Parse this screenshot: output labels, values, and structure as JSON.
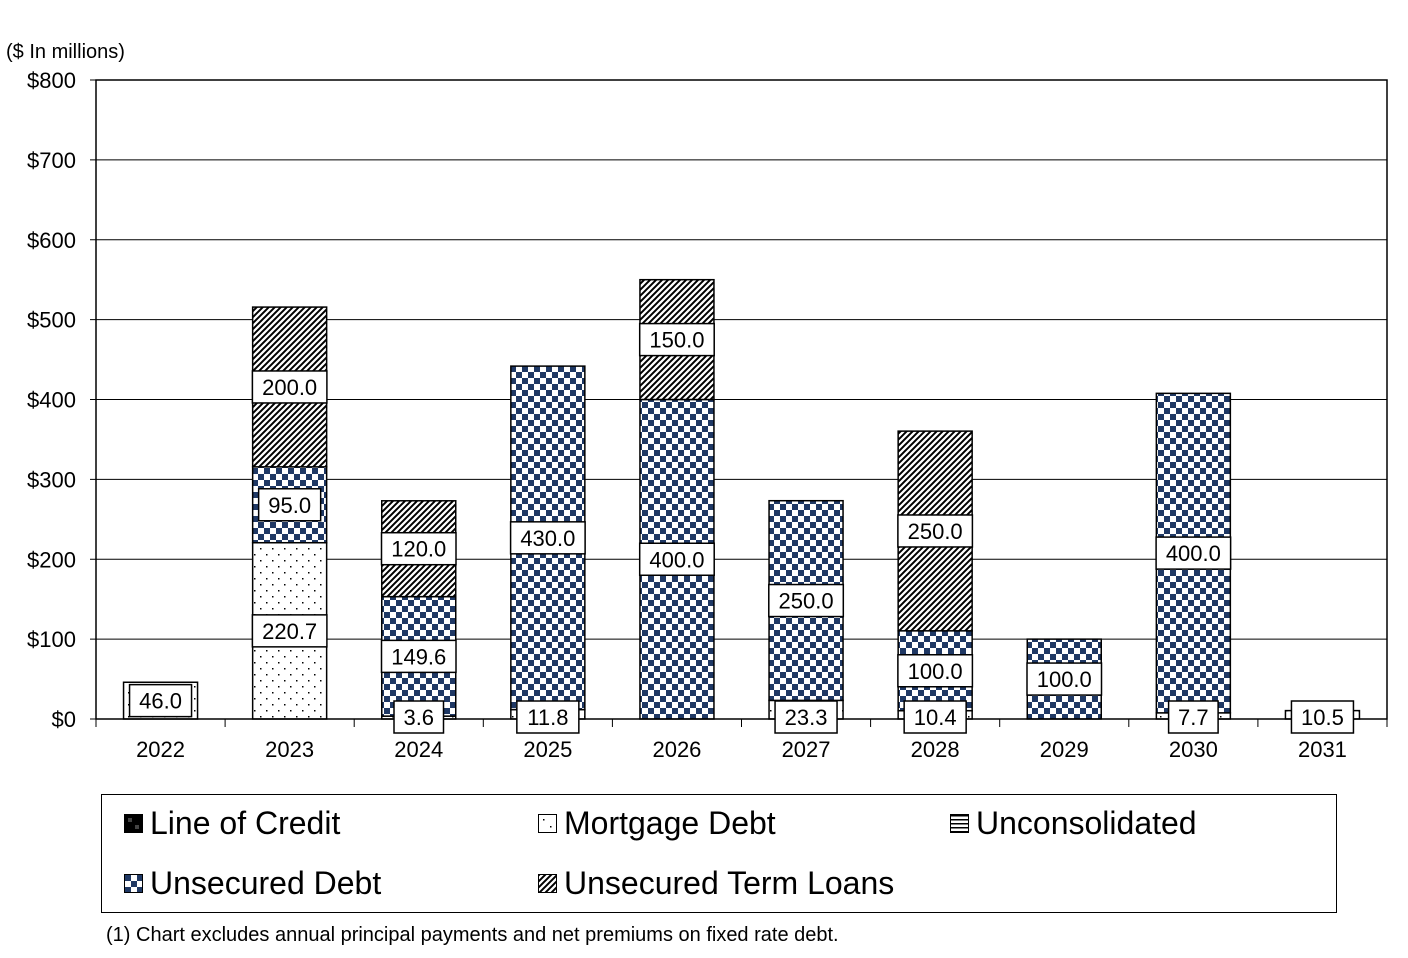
{
  "chart_data": {
    "type": "bar",
    "stacked": true,
    "title": "",
    "xlabel": "",
    "ylabel": "($ In millions)",
    "ylim": [
      0,
      800
    ],
    "yticks": [
      0,
      100,
      200,
      300,
      400,
      500,
      600,
      700,
      800
    ],
    "ytick_labels": [
      "$0",
      "$100",
      "$200",
      "$300",
      "$400",
      "$500",
      "$600",
      "$700",
      "$800"
    ],
    "categories": [
      "2022",
      "2023",
      "2024",
      "2025",
      "2026",
      "2027",
      "2028",
      "2029",
      "2030",
      "2031"
    ],
    "series": [
      {
        "name": "Mortgage Debt",
        "color": "#ffffff",
        "pattern": "dots",
        "values": [
          46.0,
          220.7,
          3.6,
          11.8,
          0,
          23.3,
          10.4,
          0,
          7.7,
          10.5
        ],
        "labels": [
          "46.0",
          "220.7",
          "3.6",
          "11.8",
          "",
          "23.3",
          "10.4",
          "",
          "7.7",
          "10.5"
        ]
      },
      {
        "name": "Unsecured Debt",
        "color": "#1f3864",
        "pattern": "checker",
        "values": [
          0,
          95.0,
          149.6,
          430.0,
          400.0,
          250.0,
          100.0,
          100.0,
          400.0,
          0
        ],
        "labels": [
          "",
          "95.0",
          "149.6",
          "430.0",
          "400.0",
          "250.0",
          "100.0",
          "100.0",
          "400.0",
          ""
        ]
      },
      {
        "name": "Unsecured Term Loans",
        "color": "#000000",
        "pattern": "diagonal",
        "values": [
          0,
          200.0,
          120.0,
          0,
          150.0,
          0,
          250.0,
          0,
          0,
          0
        ],
        "labels": [
          "",
          "200.0",
          "120.0",
          "",
          "150.0",
          "",
          "250.0",
          "",
          "",
          ""
        ]
      }
    ],
    "legend_position": "bottom",
    "grid": true
  },
  "legend": {
    "items": [
      {
        "label": "Line of Credit",
        "pattern": "solid-dark"
      },
      {
        "label": "Mortgage Debt",
        "pattern": "dots"
      },
      {
        "label": "Unconsolidated",
        "pattern": "horizontal"
      },
      {
        "label": "Unsecured Debt",
        "pattern": "checker"
      },
      {
        "label": "Unsecured Term Loans",
        "pattern": "diagonal"
      }
    ]
  },
  "footnote": "(1) Chart excludes annual principal payments and net premiums on fixed rate debt.",
  "colors": {
    "navy": "#1f3864",
    "black": "#000000",
    "white": "#ffffff"
  }
}
